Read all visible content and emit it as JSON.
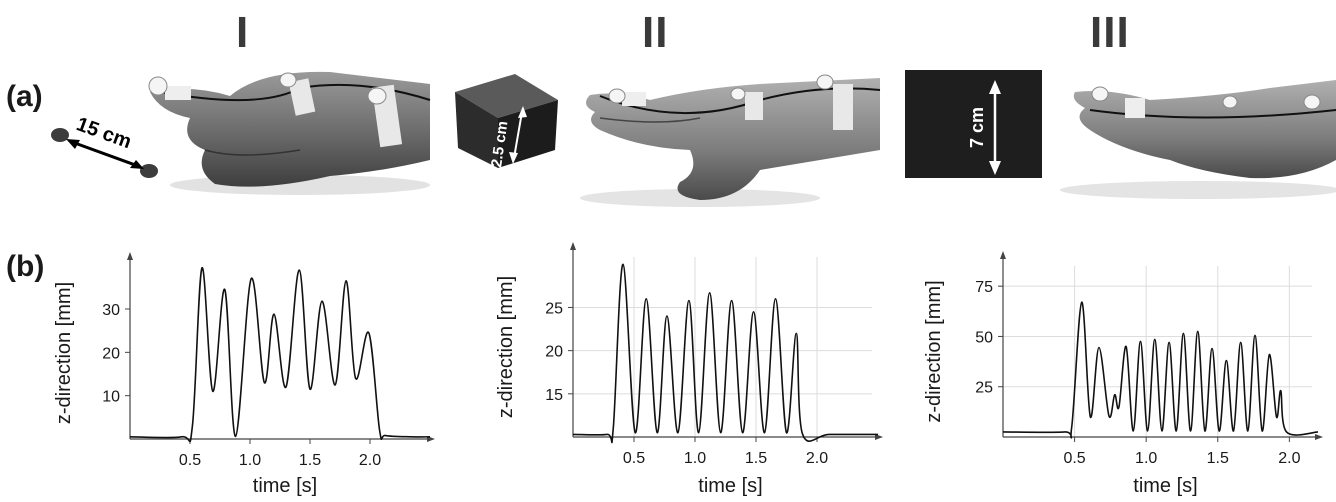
{
  "figure": {
    "panel_a_label": "(a)",
    "panel_b_label": "(b)",
    "condition_labels": [
      "I",
      "II",
      "III"
    ],
    "photo_annotations": {
      "I": "15 cm",
      "II": "2.5 cm",
      "III": "7 cm"
    },
    "colors": {
      "line": "#111111",
      "axis": "#444444",
      "grid": "#dddddd",
      "text": "#1a1a1a"
    }
  },
  "chart_data": [
    {
      "type": "line",
      "title": "I",
      "xlabel": "time [s]",
      "ylabel": "z-direction [mm]",
      "xlim": [
        0,
        2.5
      ],
      "ylim": [
        0,
        42
      ],
      "xticks": [
        0.5,
        1.0,
        1.5,
        2.0
      ],
      "xtick_labels": [
        "0.5",
        "1.0",
        "1.5",
        "2.0"
      ],
      "yticks": [
        10,
        20,
        30
      ],
      "ytick_labels": [
        "10",
        "20",
        "30"
      ],
      "grid": false,
      "series": [
        {
          "x": [
            0.0,
            0.43,
            0.52,
            0.6,
            0.69,
            0.79,
            0.88,
            1.01,
            1.12,
            1.2,
            1.3,
            1.41,
            1.5,
            1.6,
            1.71,
            1.8,
            1.88,
            1.99,
            2.08,
            2.13,
            2.35,
            2.5
          ],
          "y": [
            0.5,
            0.5,
            3.0,
            39.5,
            11.0,
            34.5,
            0.6,
            37.0,
            13.0,
            28.8,
            12.0,
            39.0,
            11.5,
            31.8,
            12.5,
            36.5,
            14.0,
            24.5,
            2.0,
            0.8,
            0.5,
            0.5
          ]
        }
      ]
    },
    {
      "type": "line",
      "title": "II",
      "xlabel": "time [s]",
      "ylabel": "z-direction [mm]",
      "xlim": [
        0,
        2.5
      ],
      "ylim": [
        10,
        32
      ],
      "xticks": [
        0.5,
        1.0,
        1.5,
        2.0
      ],
      "xtick_labels": [
        "0.5",
        "1.0",
        "1.5",
        "2.0"
      ],
      "yticks": [
        15,
        20,
        25
      ],
      "ytick_labels": [
        "15",
        "20",
        "25"
      ],
      "grid": true,
      "series": [
        {
          "x": [
            0.0,
            0.28,
            0.33,
            0.41,
            0.51,
            0.6,
            0.69,
            0.77,
            0.86,
            0.95,
            1.03,
            1.12,
            1.21,
            1.3,
            1.39,
            1.48,
            1.57,
            1.66,
            1.75,
            1.83,
            1.88,
            2.1,
            2.5
          ],
          "y": [
            10.3,
            10.3,
            11.0,
            30.0,
            10.5,
            26.0,
            10.5,
            24.0,
            10.5,
            25.8,
            10.5,
            26.7,
            10.5,
            25.8,
            10.5,
            24.5,
            10.5,
            26.0,
            10.5,
            22.0,
            10.4,
            10.3,
            10.3
          ]
        }
      ]
    },
    {
      "type": "line",
      "title": "III",
      "xlabel": "time [s]",
      "ylabel": "z-direction [mm]",
      "xlim": [
        0,
        2.2
      ],
      "ylim": [
        0,
        90
      ],
      "xticks": [
        0.5,
        1.0,
        1.5,
        2.0
      ],
      "xtick_labels": [
        "0.5",
        "1.0",
        "1.5",
        "2.0"
      ],
      "yticks": [
        25,
        50,
        75
      ],
      "ytick_labels": [
        "25",
        "50",
        "75"
      ],
      "grid": true,
      "series": [
        {
          "x": [
            0.0,
            0.43,
            0.48,
            0.55,
            0.61,
            0.67,
            0.74,
            0.78,
            0.81,
            0.86,
            0.91,
            0.96,
            1.01,
            1.06,
            1.11,
            1.16,
            1.21,
            1.26,
            1.31,
            1.36,
            1.41,
            1.46,
            1.51,
            1.56,
            1.61,
            1.66,
            1.71,
            1.76,
            1.81,
            1.86,
            1.91,
            1.94,
            1.98,
            2.2
          ],
          "y": [
            2.5,
            2.5,
            5.0,
            67.0,
            10.0,
            44.5,
            10.5,
            21.0,
            15.0,
            45.0,
            3.0,
            47.5,
            3.0,
            48.5,
            3.0,
            47.0,
            3.0,
            51.5,
            3.0,
            52.5,
            3.0,
            44.0,
            3.0,
            38.0,
            3.0,
            47.0,
            3.0,
            50.5,
            3.0,
            41.0,
            10.0,
            23.0,
            2.5,
            2.5
          ]
        }
      ]
    }
  ]
}
